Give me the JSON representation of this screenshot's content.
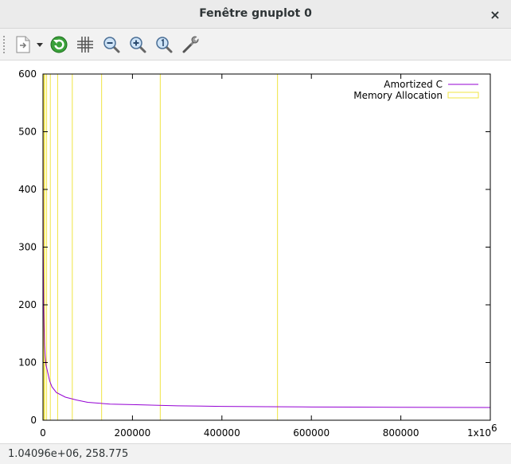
{
  "window": {
    "title": "Fenêtre gnuplot 0",
    "close_label": "×"
  },
  "toolbar": {
    "items": [
      {
        "icon": "export-document-icon"
      },
      {
        "icon": "refresh-icon"
      },
      {
        "icon": "grid-icon"
      },
      {
        "icon": "zoom-out-icon"
      },
      {
        "icon": "zoom-in-icon"
      },
      {
        "icon": "zoom-reset-icon"
      },
      {
        "icon": "settings-wrench-icon"
      }
    ]
  },
  "status": {
    "coords": "1.04096e+06,  258.775"
  },
  "chart_data": {
    "type": "line",
    "xlim": [
      0,
      1000000
    ],
    "ylim": [
      0,
      600
    ],
    "xticks": [
      0,
      200000,
      400000,
      600000,
      800000,
      1000000
    ],
    "xtick_labels": [
      "0",
      "200000",
      "400000",
      "600000",
      "800000",
      "1x10"
    ],
    "xtick_exponent": "6",
    "yticks": [
      0,
      100,
      200,
      300,
      400,
      500,
      600
    ],
    "ytick_labels": [
      "0",
      "100",
      "200",
      "300",
      "400",
      "500",
      "600"
    ],
    "legend_position": "top-right",
    "grid": false,
    "series": [
      {
        "name": "Amortized C",
        "color": "#9400d3",
        "style": "line",
        "x": [
          1,
          100,
          500,
          1000,
          1500,
          2500,
          3500,
          5000,
          7000,
          10000,
          15000,
          20000,
          30000,
          50000,
          75000,
          100000,
          150000,
          200000,
          300000,
          400000,
          500000,
          600000,
          700000,
          800000,
          900000,
          1000000
        ],
        "y": [
          600,
          500,
          300,
          250,
          200,
          160,
          130,
          110,
          95,
          85,
          68,
          58,
          48,
          40,
          35,
          31,
          28,
          27,
          25,
          24,
          23.5,
          23,
          22.8,
          22.5,
          22.3,
          22
        ]
      },
      {
        "name": "Memory Allocation",
        "color": "#f0e442",
        "style": "impulses",
        "x": [
          1,
          2,
          4,
          8,
          16,
          32,
          64,
          128,
          256,
          512,
          1024,
          2048,
          4096,
          8192,
          16384,
          32768,
          65536,
          131072,
          262144,
          524288
        ],
        "y": [
          600,
          600,
          600,
          600,
          600,
          600,
          600,
          600,
          600,
          600,
          600,
          600,
          600,
          600,
          600,
          600,
          600,
          600,
          600,
          600
        ]
      }
    ]
  }
}
